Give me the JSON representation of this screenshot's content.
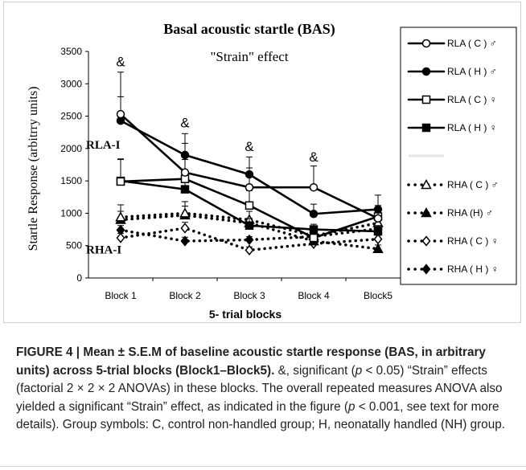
{
  "chart_data": {
    "type": "line",
    "title": "Basal acoustic startle (BAS)",
    "subtitle": "\"Strain\" effect",
    "xlabel": "5- trial blocks",
    "ylabel": "Startle Response (arbitrry units)",
    "categories": [
      "Block 1",
      "Block 2",
      "Block 3",
      "Block 4",
      "Block5"
    ],
    "ylim": [
      0,
      3500
    ],
    "yticks": [
      0,
      500,
      1000,
      1500,
      2000,
      2500,
      3000,
      3500
    ],
    "grid": false,
    "legend_position": "right",
    "series": [
      {
        "name": "RLA ( C ) ♂",
        "values": [
          2530,
          1630,
          1400,
          1400,
          920
        ],
        "errors": [
          650,
          450,
          300,
          330,
          170
        ],
        "line": "solid",
        "marker": "circle-open"
      },
      {
        "name": "RLA ( H ) ♂",
        "values": [
          2430,
          1900,
          1600,
          990,
          1060
        ],
        "errors": [
          370,
          330,
          270,
          150,
          220
        ],
        "line": "solid",
        "marker": "circle-filled"
      },
      {
        "name": "RLA ( C ) ♀",
        "values": [
          1490,
          1530,
          1120,
          620,
          950
        ],
        "errors": [
          340,
          300,
          230,
          100,
          170
        ],
        "line": "solid",
        "marker": "square-open"
      },
      {
        "name": "RLA ( H ) ♀",
        "values": [
          1500,
          1370,
          810,
          750,
          720
        ],
        "errors": [
          340,
          190,
          110,
          80,
          90
        ],
        "line": "solid",
        "marker": "square-filled"
      },
      {
        "name": "RHA ( C ) ♂",
        "values": [
          940,
          1000,
          900,
          650,
          850
        ],
        "errors": [
          190,
          180,
          130,
          60,
          150
        ],
        "line": "dotted",
        "marker": "triangle-open"
      },
      {
        "name": "RHA (H) ♂",
        "values": [
          900,
          970,
          850,
          570,
          450
        ],
        "errors": [
          130,
          140,
          70,
          50,
          60
        ],
        "line": "dotted",
        "marker": "triangle-filled"
      },
      {
        "name": "RHA ( C ) ♀",
        "values": [
          620,
          770,
          430,
          530,
          600
        ],
        "errors": [
          70,
          90,
          50,
          40,
          60
        ],
        "line": "dotted",
        "marker": "diamond-open"
      },
      {
        "name": "RHA ( H ) ♀",
        "values": [
          740,
          570,
          590,
          640,
          760
        ],
        "errors": [
          70,
          60,
          50,
          50,
          70
        ],
        "line": "dotted",
        "marker": "diamond-filled"
      }
    ],
    "annotations": [
      {
        "text": "&",
        "x": "Block 1",
        "y": 3270
      },
      {
        "text": "&",
        "x": "Block 2",
        "y": 2330
      },
      {
        "text": "&",
        "x": "Block 3",
        "y": 1960
      },
      {
        "text": "&",
        "x": "Block 4",
        "y": 1800
      },
      {
        "text": "RLA-I",
        "x": "Block 1",
        "y": 2000
      },
      {
        "text": "RHA-I",
        "x": "Block 1",
        "y": 380
      }
    ]
  },
  "caption": {
    "bold_text": "FIGURE 4 | Mean ± S.E.M of baseline acoustic startle response (BAS, in arbitrary units) across 5-trial blocks (Block1–Block5).",
    "part1": " &, significant (",
    "p1": "p",
    "part2": " < 0.05) “Strain” effects (factorial 2 × 2 × 2 ANOVAs) in these blocks. The overall repeated measures ANOVA also yielded a significant “Strain” effect, as indicated in the figure (",
    "p2": "p",
    "part3": " < 0.001, see text for more details). Group symbols: C, control non-handled group; H, neonatally handled (NH) group."
  }
}
